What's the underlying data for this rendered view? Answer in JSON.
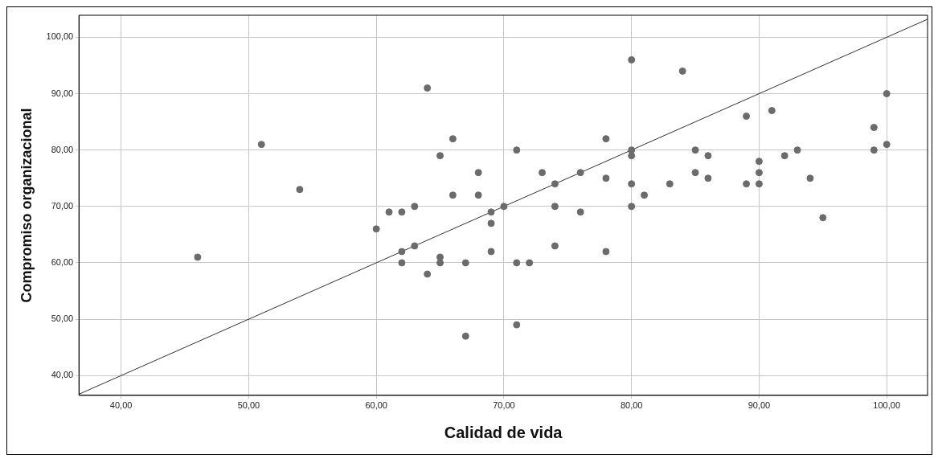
{
  "chart_data": {
    "type": "scatter",
    "xlabel": "Calidad de vida",
    "ylabel": "Compromiso organizacional",
    "xlim": [
      36.7,
      103.2
    ],
    "ylim": [
      36.5,
      103.9
    ],
    "xticks": [
      {
        "value": 40,
        "label": "40,00"
      },
      {
        "value": 50,
        "label": "50,00"
      },
      {
        "value": 60,
        "label": "60,00"
      },
      {
        "value": 70,
        "label": "70,00"
      },
      {
        "value": 80,
        "label": "80,00"
      },
      {
        "value": 90,
        "label": "90,00"
      },
      {
        "value": 100,
        "label": "100,00"
      }
    ],
    "yticks": [
      {
        "value": 40,
        "label": "40,00"
      },
      {
        "value": 50,
        "label": "50,00"
      },
      {
        "value": 60,
        "label": "60,00"
      },
      {
        "value": 70,
        "label": "70,00"
      },
      {
        "value": 80,
        "label": "80,00"
      },
      {
        "value": 90,
        "label": "90,00"
      },
      {
        "value": 100,
        "label": "100,00"
      }
    ],
    "grid": true,
    "series": [
      {
        "marker": "circle",
        "color": "#6b6b6b",
        "x": [
          46,
          51,
          54,
          60,
          64,
          61,
          62,
          62,
          62,
          63,
          63,
          64,
          65,
          65,
          65,
          66,
          66,
          67,
          67,
          68,
          68,
          69,
          69,
          69,
          70,
          71,
          71,
          71,
          72,
          73,
          74,
          74,
          74,
          76,
          76,
          78,
          78,
          78,
          80,
          80,
          80,
          80,
          80,
          81,
          83,
          84,
          85,
          85,
          86,
          86,
          89,
          89,
          90,
          90,
          90,
          91,
          92,
          93,
          94,
          95,
          99,
          99,
          100,
          100
        ],
        "values": [
          61,
          81,
          73,
          66,
          91,
          69,
          69,
          62,
          60,
          70,
          63,
          58,
          79,
          61,
          60,
          82,
          72,
          60,
          47,
          76,
          72,
          69,
          67,
          62,
          70,
          80,
          60,
          49,
          60,
          76,
          74,
          70,
          63,
          76,
          69,
          82,
          75,
          62,
          96,
          80,
          79,
          74,
          70,
          72,
          74,
          94,
          80,
          76,
          79,
          75,
          86,
          74,
          78,
          76,
          74,
          87,
          79,
          80,
          75,
          68,
          84,
          80,
          90,
          81
        ]
      },
      {
        "type": "line",
        "marker": "none",
        "color": "#333333",
        "x": [
          36.7,
          103.2
        ],
        "values": [
          36.7,
          103.2
        ]
      }
    ]
  }
}
